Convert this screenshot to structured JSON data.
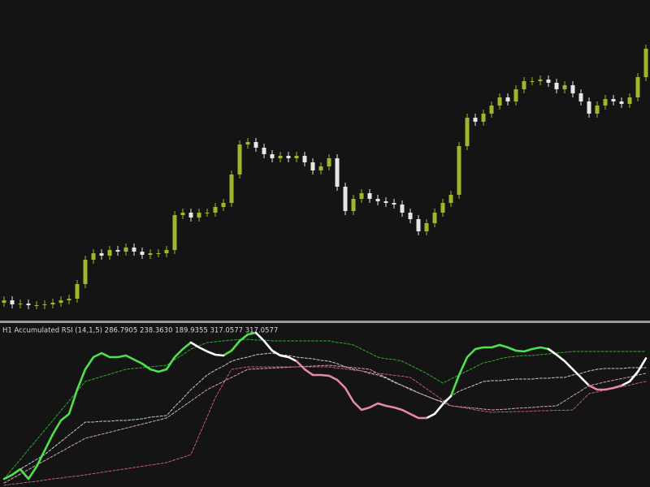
{
  "chart_data": [
    {
      "type": "candlestick",
      "up_color": "#a3b52b",
      "down_color": "#e6e6e6",
      "ylim": [
        0,
        395
      ],
      "open": [
        22,
        25,
        20,
        21,
        19,
        19,
        20,
        22,
        25,
        27,
        45,
        75,
        83,
        80,
        87,
        85,
        90,
        85,
        81,
        83,
        83,
        87,
        130,
        133,
        127,
        133,
        133,
        140,
        145,
        180,
        217,
        220,
        213,
        205,
        200,
        203,
        200,
        203,
        195,
        185,
        190,
        200,
        165,
        135,
        150,
        157,
        150,
        147,
        145,
        143,
        133,
        125,
        110,
        120,
        133,
        145,
        155,
        215,
        250,
        245,
        255,
        265,
        275,
        270,
        285,
        295,
        295,
        297,
        293,
        285,
        290,
        280,
        270,
        255,
        265,
        273,
        270,
        267,
        275,
        300
      ],
      "high": [
        30,
        30,
        26,
        26,
        24,
        25,
        27,
        30,
        32,
        50,
        80,
        88,
        88,
        92,
        92,
        95,
        95,
        90,
        88,
        88,
        92,
        135,
        138,
        138,
        138,
        138,
        145,
        150,
        185,
        222,
        225,
        225,
        218,
        210,
        208,
        208,
        208,
        208,
        200,
        195,
        205,
        205,
        170,
        155,
        162,
        162,
        155,
        152,
        150,
        148,
        138,
        130,
        125,
        138,
        150,
        160,
        220,
        255,
        255,
        260,
        270,
        280,
        280,
        290,
        300,
        300,
        302,
        302,
        298,
        295,
        295,
        285,
        275,
        270,
        278,
        278,
        275,
        280,
        305,
        340
      ],
      "low": [
        17,
        15,
        15,
        14,
        14,
        14,
        15,
        17,
        20,
        22,
        40,
        70,
        75,
        75,
        80,
        80,
        80,
        76,
        76,
        78,
        78,
        82,
        125,
        122,
        122,
        128,
        128,
        135,
        140,
        175,
        212,
        208,
        200,
        195,
        195,
        195,
        195,
        190,
        180,
        180,
        185,
        160,
        130,
        130,
        145,
        145,
        142,
        140,
        138,
        128,
        120,
        105,
        105,
        115,
        128,
        140,
        150,
        210,
        240,
        240,
        250,
        260,
        265,
        265,
        280,
        290,
        290,
        288,
        280,
        280,
        275,
        265,
        250,
        250,
        260,
        265,
        262,
        262,
        270,
        295
      ],
      "close": [
        25,
        20,
        21,
        19,
        19,
        20,
        22,
        25,
        27,
        45,
        75,
        83,
        80,
        87,
        85,
        90,
        85,
        81,
        83,
        83,
        87,
        130,
        133,
        127,
        133,
        133,
        140,
        145,
        180,
        217,
        220,
        213,
        205,
        200,
        203,
        200,
        203,
        195,
        185,
        190,
        200,
        165,
        135,
        150,
        157,
        150,
        147,
        145,
        143,
        133,
        125,
        110,
        120,
        133,
        145,
        155,
        215,
        250,
        245,
        255,
        265,
        275,
        270,
        285,
        295,
        295,
        297,
        293,
        285,
        290,
        280,
        270,
        255,
        265,
        273,
        270,
        267,
        275,
        300,
        335
      ]
    },
    {
      "type": "line",
      "title": "H1 Accumulated RSI (14,1,5) 286.7905 238.3630 189.9355 317.0577 317.0577",
      "ylim": [
        0,
        400
      ],
      "series": [
        {
          "color": "#2ea82e",
          "dashed": true,
          "values": [
            20,
            44,
            68,
            92,
            116,
            140,
            164,
            188,
            212,
            236,
            260,
            266,
            272,
            278,
            284,
            290,
            292,
            294,
            296,
            298,
            300,
            314,
            326,
            340,
            348,
            356,
            358,
            360,
            362,
            363,
            364,
            362,
            362,
            360,
            360,
            360,
            360,
            360,
            360,
            360,
            360,
            356,
            354,
            350,
            340,
            330,
            320,
            316,
            314,
            310,
            300,
            290,
            280,
            268,
            256,
            266,
            276,
            286,
            296,
            306,
            310,
            316,
            320,
            322,
            324,
            324,
            326,
            328,
            330,
            332,
            334,
            334,
            334,
            334,
            334,
            334,
            334,
            334,
            334,
            334
          ]
        },
        {
          "color": "#c8c8c8",
          "dashed": true,
          "values": [
            20,
            32,
            44,
            56,
            68,
            80,
            96,
            112,
            128,
            144,
            160,
            160,
            162,
            162,
            164,
            164,
            166,
            168,
            172,
            174,
            176,
            198,
            218,
            240,
            258,
            276,
            288,
            298,
            310,
            316,
            320,
            326,
            328,
            330,
            326,
            324,
            320,
            318,
            316,
            312,
            310,
            304,
            296,
            290,
            286,
            280,
            276,
            268,
            258,
            250,
            242,
            232,
            224,
            216,
            210,
            224,
            236,
            244,
            252,
            260,
            262,
            262,
            264,
            266,
            266,
            266,
            268,
            268,
            270,
            270,
            276,
            280,
            286,
            290,
            292,
            292,
            292,
            294,
            294,
            294
          ]
        },
        {
          "color": "#d2a6ae",
          "dashed": true,
          "values": [
            10,
            21,
            32,
            43,
            54,
            65,
            76,
            87,
            98,
            109,
            120,
            125,
            130,
            135,
            140,
            145,
            150,
            155,
            160,
            165,
            170,
            184,
            198,
            212,
            226,
            240,
            250,
            260,
            270,
            280,
            290,
            291,
            292,
            293,
            294,
            295,
            296,
            297,
            298,
            299,
            300,
            298,
            296,
            294,
            292,
            290,
            280,
            270,
            260,
            250,
            240,
            232,
            224,
            216,
            208,
            200,
            198,
            196,
            194,
            192,
            190,
            191,
            192,
            194,
            195,
            196,
            198,
            199,
            200,
            212,
            225,
            237,
            250,
            254,
            259,
            263,
            267,
            271,
            276,
            280
          ]
        },
        {
          "color": "#c25a78",
          "dashed": true,
          "values": [
            4,
            7,
            9,
            12,
            14,
            17,
            20,
            22,
            25,
            27,
            30,
            33,
            36,
            39,
            42,
            45,
            48,
            51,
            54,
            57,
            60,
            67,
            73,
            80,
            127,
            173,
            220,
            255,
            290,
            293,
            296,
            296,
            296,
            296,
            296,
            296,
            296,
            296,
            296,
            296,
            296,
            293,
            291,
            288,
            286,
            283,
            280,
            278,
            275,
            273,
            270,
            256,
            242,
            228,
            214,
            200,
            197,
            194,
            190,
            187,
            184,
            185,
            185,
            186,
            186,
            187,
            188,
            188,
            189,
            189,
            190,
            210,
            230,
            234,
            239,
            243,
            247,
            251,
            256,
            260
          ]
        },
        {
          "color": "#4ee04e",
          "values": [
            20,
            30,
            44,
            20,
            50,
            90,
            130,
            164,
            180,
            240,
            290,
            320,
            330,
            320,
            320,
            324,
            314,
            304,
            290,
            284,
            290,
            320,
            340,
            356,
            null,
            null,
            null,
            324,
            336,
            360,
            376,
            380,
            null,
            null,
            null,
            null,
            null,
            null,
            null,
            null,
            null,
            null,
            null,
            null,
            null,
            null,
            null,
            null,
            null,
            null,
            null,
            null,
            null,
            null,
            null,
            224,
            276,
            320,
            340,
            344,
            344,
            350,
            344,
            336,
            334,
            340,
            344,
            340,
            null,
            null,
            null,
            null,
            null,
            null,
            null,
            null,
            null,
            null,
            null,
            null
          ]
        },
        {
          "color": "#ffffff",
          "values": [
            null,
            null,
            null,
            null,
            null,
            null,
            null,
            null,
            null,
            null,
            null,
            null,
            null,
            null,
            null,
            null,
            null,
            null,
            null,
            null,
            null,
            null,
            null,
            356,
            344,
            334,
            326,
            324,
            null,
            null,
            null,
            380,
            360,
            336,
            324,
            320,
            310,
            null,
            null,
            null,
            null,
            null,
            null,
            null,
            null,
            null,
            null,
            null,
            null,
            null,
            null,
            null,
            170,
            180,
            204,
            224,
            null,
            null,
            null,
            null,
            null,
            null,
            null,
            null,
            null,
            null,
            null,
            340,
            326,
            310,
            290,
            270,
            250,
            null,
            null,
            null,
            250,
            260,
            284,
            317
          ]
        },
        {
          "color": "#e48aa2",
          "values": [
            null,
            null,
            null,
            null,
            null,
            null,
            null,
            null,
            null,
            null,
            null,
            null,
            null,
            null,
            null,
            null,
            null,
            null,
            null,
            null,
            null,
            null,
            null,
            null,
            null,
            null,
            null,
            null,
            null,
            null,
            null,
            null,
            null,
            null,
            null,
            null,
            310,
            290,
            276,
            276,
            274,
            264,
            244,
            210,
            190,
            196,
            206,
            200,
            196,
            190,
            180,
            170,
            170,
            null,
            null,
            null,
            null,
            null,
            null,
            null,
            null,
            null,
            null,
            null,
            null,
            null,
            null,
            null,
            null,
            null,
            null,
            null,
            250,
            240,
            240,
            244,
            250,
            null,
            null,
            null
          ]
        }
      ]
    }
  ]
}
